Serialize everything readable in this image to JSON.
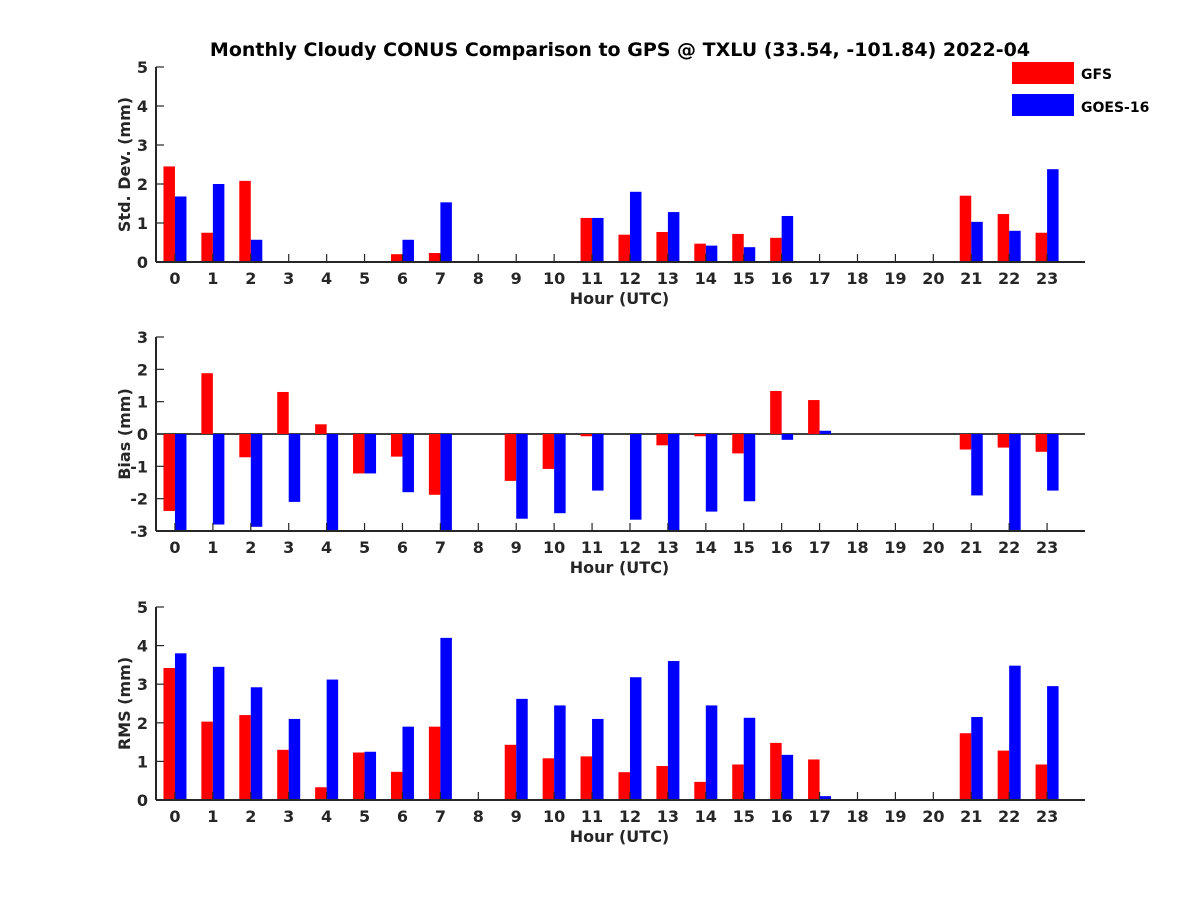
{
  "title": "Monthly Cloudy CONUS Comparison to GPS @ TXLU (33.54, -101.84) 2022-04",
  "legend": {
    "position": "top-right",
    "entries": [
      {
        "name": "GFS",
        "color": "#ff0000"
      },
      {
        "name": "GOES-16",
        "color": "#0000ff"
      }
    ]
  },
  "chart_data": [
    {
      "type": "bar",
      "xlabel": "Hour (UTC)",
      "ylabel": "Std. Dev. (mm)",
      "ylim": [
        0,
        5
      ],
      "yticks": [
        0,
        1,
        2,
        3,
        4,
        5
      ],
      "categories": [
        0,
        1,
        2,
        3,
        4,
        5,
        6,
        7,
        8,
        9,
        10,
        11,
        12,
        13,
        14,
        15,
        16,
        17,
        18,
        19,
        20,
        21,
        22,
        23
      ],
      "series": [
        {
          "name": "GFS",
          "color": "#ff0000",
          "values": [
            2.45,
            0.75,
            2.08,
            0,
            0,
            0,
            0.2,
            0.23,
            0,
            0,
            0,
            1.13,
            0.7,
            0.77,
            0.47,
            0.72,
            0.62,
            0,
            0,
            0,
            0,
            1.7,
            1.23,
            0.75
          ]
        },
        {
          "name": "GOES-16",
          "color": "#0000ff",
          "values": [
            1.68,
            2.0,
            0.57,
            0,
            0,
            0,
            0.57,
            1.53,
            0,
            0,
            0,
            1.13,
            1.8,
            1.28,
            0.42,
            0.38,
            1.18,
            0,
            0,
            0,
            0,
            1.03,
            0.8,
            2.38
          ]
        }
      ]
    },
    {
      "type": "bar",
      "xlabel": "Hour (UTC)",
      "ylabel": "Bias (mm)",
      "ylim": [
        -3,
        3
      ],
      "yticks": [
        -3,
        -2,
        -1,
        0,
        1,
        2,
        3
      ],
      "categories": [
        0,
        1,
        2,
        3,
        4,
        5,
        6,
        7,
        8,
        9,
        10,
        11,
        12,
        13,
        14,
        15,
        16,
        17,
        18,
        19,
        20,
        21,
        22,
        23
      ],
      "series": [
        {
          "name": "GFS",
          "color": "#ff0000",
          "values": [
            -2.38,
            1.88,
            -0.72,
            1.3,
            0.3,
            -1.22,
            -0.7,
            -1.88,
            0,
            -1.45,
            -1.08,
            -0.07,
            0,
            -0.35,
            -0.07,
            -0.6,
            1.33,
            1.05,
            0,
            0,
            0,
            -0.48,
            -0.42,
            -0.55
          ]
        },
        {
          "name": "GOES-16",
          "color": "#0000ff",
          "values": [
            -3.0,
            -2.8,
            -2.87,
            -2.1,
            -3.0,
            -1.22,
            -1.8,
            -3.0,
            0,
            -2.62,
            -2.45,
            -1.75,
            -2.65,
            -3.0,
            -2.4,
            -2.08,
            -0.18,
            0.1,
            0,
            0,
            0,
            -1.9,
            -3.0,
            -1.75
          ]
        }
      ]
    },
    {
      "type": "bar",
      "xlabel": "Hour (UTC)",
      "ylabel": "RMS (mm)",
      "ylim": [
        0,
        5
      ],
      "yticks": [
        0,
        1,
        2,
        3,
        4,
        5
      ],
      "categories": [
        0,
        1,
        2,
        3,
        4,
        5,
        6,
        7,
        8,
        9,
        10,
        11,
        12,
        13,
        14,
        15,
        16,
        17,
        18,
        19,
        20,
        21,
        22,
        23
      ],
      "series": [
        {
          "name": "GFS",
          "color": "#ff0000",
          "values": [
            3.42,
            2.03,
            2.2,
            1.3,
            0.33,
            1.23,
            0.73,
            1.9,
            0,
            1.43,
            1.08,
            1.13,
            0.72,
            0.88,
            0.47,
            0.92,
            1.48,
            1.05,
            0,
            0,
            0,
            1.73,
            1.28,
            0.92
          ]
        },
        {
          "name": "GOES-16",
          "color": "#0000ff",
          "values": [
            3.8,
            3.45,
            2.92,
            2.1,
            3.12,
            1.25,
            1.9,
            4.2,
            0,
            2.62,
            2.45,
            2.1,
            3.18,
            3.6,
            2.45,
            2.13,
            1.17,
            0.1,
            0,
            0,
            0,
            2.15,
            3.48,
            2.95
          ]
        }
      ]
    }
  ]
}
